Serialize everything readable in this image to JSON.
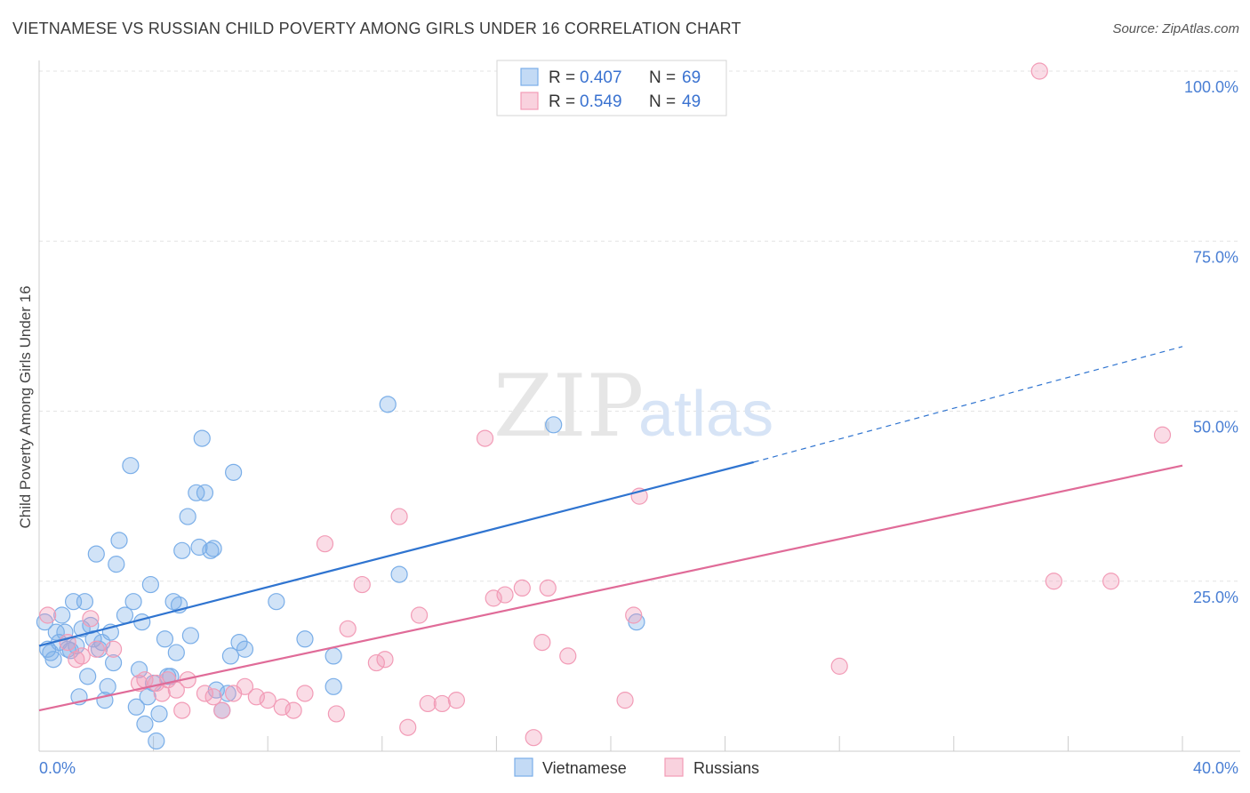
{
  "title": "VIETNAMESE VS RUSSIAN CHILD POVERTY AMONG GIRLS UNDER 16 CORRELATION CHART",
  "source": "Source: ZipAtlas.com",
  "watermark": {
    "zip": "ZIP",
    "atlas": "atlas"
  },
  "legend": {
    "r_label": "R =",
    "n_label": "N =",
    "rows": [
      {
        "series": "Vietnamese",
        "r": "0.407",
        "n": "69"
      },
      {
        "series": "Russians",
        "r": "0.549",
        "n": "49"
      }
    ]
  },
  "chart_data": {
    "type": "scatter",
    "title": "VIETNAMESE VS RUSSIAN CHILD POVERTY AMONG GIRLS UNDER 16 CORRELATION CHART",
    "xlabel": "",
    "ylabel": "Child Poverty Among Girls Under 16",
    "xlim": [
      0,
      40
    ],
    "ylim": [
      0,
      100
    ],
    "x_tick_labels": [
      "0.0%",
      "40.0%"
    ],
    "y_ticks": [
      25,
      50,
      75,
      100
    ],
    "y_tick_labels": [
      "25.0%",
      "50.0%",
      "75.0%",
      "100.0%"
    ],
    "grid": true,
    "legend_position": "top-center",
    "colors": {
      "Vietnamese": "#7aaee8",
      "Russians": "#f29bb6",
      "Vietnamese_line": "#2f74d0",
      "Russians_line": "#e06b98"
    },
    "series": [
      {
        "name": "Vietnamese",
        "points": [
          [
            0.2,
            19.0
          ],
          [
            0.3,
            15.0
          ],
          [
            0.4,
            14.5
          ],
          [
            0.5,
            13.5
          ],
          [
            0.6,
            17.5
          ],
          [
            0.7,
            16.0
          ],
          [
            0.8,
            20.0
          ],
          [
            0.9,
            17.5
          ],
          [
            1.0,
            15.0
          ],
          [
            1.1,
            14.8
          ],
          [
            1.2,
            22.0
          ],
          [
            1.3,
            15.5
          ],
          [
            1.4,
            8.0
          ],
          [
            1.5,
            18.0
          ],
          [
            1.6,
            22.0
          ],
          [
            1.7,
            11.0
          ],
          [
            1.8,
            18.5
          ],
          [
            1.9,
            16.5
          ],
          [
            2.0,
            29.0
          ],
          [
            2.1,
            15.0
          ],
          [
            2.2,
            16.0
          ],
          [
            2.3,
            7.5
          ],
          [
            2.4,
            9.5
          ],
          [
            2.5,
            17.5
          ],
          [
            2.6,
            13.0
          ],
          [
            2.7,
            27.5
          ],
          [
            2.8,
            31.0
          ],
          [
            3.0,
            20.0
          ],
          [
            3.2,
            42.0
          ],
          [
            3.3,
            22.0
          ],
          [
            3.4,
            6.5
          ],
          [
            3.5,
            12.0
          ],
          [
            3.6,
            19.0
          ],
          [
            3.7,
            4.0
          ],
          [
            3.8,
            8.0
          ],
          [
            3.9,
            24.5
          ],
          [
            4.0,
            10.0
          ],
          [
            4.1,
            1.5
          ],
          [
            4.2,
            5.5
          ],
          [
            4.4,
            16.5
          ],
          [
            4.5,
            11.0
          ],
          [
            4.6,
            11.0
          ],
          [
            4.7,
            22.0
          ],
          [
            4.8,
            14.5
          ],
          [
            4.9,
            21.5
          ],
          [
            5.0,
            29.5
          ],
          [
            5.2,
            34.5
          ],
          [
            5.3,
            17.0
          ],
          [
            5.5,
            38.0
          ],
          [
            5.6,
            30.0
          ],
          [
            5.7,
            46.0
          ],
          [
            5.8,
            38.0
          ],
          [
            6.0,
            29.5
          ],
          [
            6.1,
            29.8
          ],
          [
            6.2,
            9.0
          ],
          [
            6.4,
            6.0
          ],
          [
            6.6,
            8.5
          ],
          [
            6.7,
            14.0
          ],
          [
            6.8,
            41.0
          ],
          [
            7.0,
            16.0
          ],
          [
            7.2,
            15.0
          ],
          [
            8.3,
            22.0
          ],
          [
            9.3,
            16.5
          ],
          [
            10.3,
            14.0
          ],
          [
            10.3,
            9.5
          ],
          [
            12.2,
            51.0
          ],
          [
            12.6,
            26.0
          ],
          [
            18.0,
            48.0
          ],
          [
            20.9,
            19.0
          ]
        ]
      },
      {
        "name": "Russians",
        "points": [
          [
            0.3,
            20.0
          ],
          [
            1.0,
            16.0
          ],
          [
            1.3,
            13.5
          ],
          [
            1.5,
            14.0
          ],
          [
            1.8,
            19.5
          ],
          [
            2.0,
            15.0
          ],
          [
            2.6,
            15.0
          ],
          [
            3.5,
            10.0
          ],
          [
            3.7,
            10.5
          ],
          [
            4.1,
            10.0
          ],
          [
            4.3,
            8.5
          ],
          [
            4.5,
            10.5
          ],
          [
            4.8,
            9.0
          ],
          [
            5.0,
            6.0
          ],
          [
            5.2,
            10.5
          ],
          [
            5.8,
            8.5
          ],
          [
            6.1,
            8.0
          ],
          [
            6.4,
            6.0
          ],
          [
            6.8,
            8.5
          ],
          [
            7.2,
            9.5
          ],
          [
            7.6,
            8.0
          ],
          [
            8.0,
            7.5
          ],
          [
            8.5,
            6.5
          ],
          [
            8.9,
            6.0
          ],
          [
            9.3,
            8.5
          ],
          [
            10.0,
            30.5
          ],
          [
            10.4,
            5.5
          ],
          [
            10.8,
            18.0
          ],
          [
            11.3,
            24.5
          ],
          [
            11.8,
            13.0
          ],
          [
            12.1,
            13.5
          ],
          [
            12.6,
            34.5
          ],
          [
            12.9,
            3.5
          ],
          [
            13.3,
            20.0
          ],
          [
            13.6,
            7.0
          ],
          [
            14.1,
            7.0
          ],
          [
            14.6,
            7.5
          ],
          [
            15.6,
            46.0
          ],
          [
            15.9,
            22.5
          ],
          [
            16.3,
            23.0
          ],
          [
            16.9,
            24.0
          ],
          [
            17.3,
            2.0
          ],
          [
            17.6,
            16.0
          ],
          [
            17.8,
            24.0
          ],
          [
            18.5,
            14.0
          ],
          [
            20.5,
            7.5
          ],
          [
            20.8,
            20.0
          ],
          [
            21.0,
            37.5
          ],
          [
            28.0,
            12.5
          ],
          [
            35.0,
            100.0
          ],
          [
            35.5,
            25.0
          ],
          [
            37.5,
            25.0
          ],
          [
            39.3,
            46.5
          ]
        ]
      }
    ],
    "trendlines": [
      {
        "series": "Vietnamese",
        "solid": [
          [
            0,
            15.5
          ],
          [
            25,
            42.5
          ]
        ],
        "dashed": [
          [
            25,
            42.5
          ],
          [
            40,
            59.5
          ]
        ]
      },
      {
        "series": "Russians",
        "solid": [
          [
            0,
            6.0
          ],
          [
            40,
            42.0
          ]
        ]
      }
    ]
  },
  "bottom_legend": [
    "Vietnamese",
    "Russians"
  ]
}
